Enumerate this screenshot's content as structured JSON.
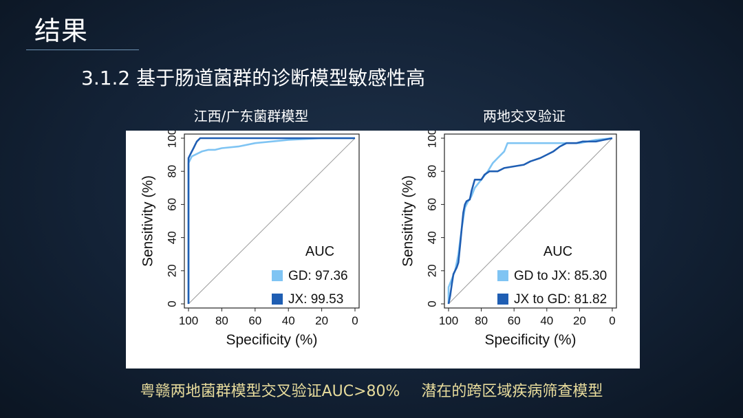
{
  "slide": {
    "title": "结果",
    "heading": "3.1.2 基于肠道菌群的诊断模型敏感性高",
    "footer_left": "粤赣两地菌群模型交叉验证AUC>80%",
    "footer_right": "潜在的跨区域疾病筛查模型"
  },
  "colors": {
    "light_series": "#7fc4f3",
    "dark_series": "#1f5eb3",
    "diagonal": "#9a9a9a",
    "footer_text": "#e8dc9c"
  },
  "chart_data": [
    {
      "type": "line",
      "panel_title": "江西/广东菌群模型",
      "xlabel": "Specificity (%)",
      "ylabel": "Sensitivity (%)",
      "xlim": [
        100,
        0
      ],
      "ylim": [
        0,
        100
      ],
      "x_ticks": [
        "100",
        "80",
        "60",
        "40",
        "20",
        "0"
      ],
      "y_ticks": [
        "0",
        "20",
        "40",
        "60",
        "80",
        "100"
      ],
      "legend_title": "AUC",
      "legend_position": "bottom-right",
      "reference_line": true,
      "series": [
        {
          "name": "GD: 97.36",
          "color": "light",
          "points": [
            [
              100,
              0
            ],
            [
              100,
              85
            ],
            [
              99,
              87
            ],
            [
              98,
              89
            ],
            [
              96,
              90
            ],
            [
              92,
              92
            ],
            [
              88,
              93
            ],
            [
              84,
              93
            ],
            [
              80,
              94
            ],
            [
              70,
              95
            ],
            [
              60,
              97
            ],
            [
              50,
              98
            ],
            [
              40,
              99
            ],
            [
              20,
              100
            ],
            [
              0,
              100
            ]
          ]
        },
        {
          "name": "JX: 99.53",
          "color": "dark",
          "points": [
            [
              100,
              0
            ],
            [
              100,
              88
            ],
            [
              99,
              90
            ],
            [
              98,
              92
            ],
            [
              97,
              94
            ],
            [
              96,
              96
            ],
            [
              95,
              98
            ],
            [
              94,
              99
            ],
            [
              93,
              100
            ],
            [
              60,
              100
            ],
            [
              0,
              100
            ]
          ]
        }
      ]
    },
    {
      "type": "line",
      "panel_title": "两地交叉验证",
      "xlabel": "Specificity (%)",
      "ylabel": "Sensitivity (%)",
      "xlim": [
        100,
        0
      ],
      "ylim": [
        0,
        100
      ],
      "x_ticks": [
        "100",
        "80",
        "60",
        "40",
        "20",
        "0"
      ],
      "y_ticks": [
        "0",
        "20",
        "40",
        "60",
        "80",
        "100"
      ],
      "legend_title": "AUC",
      "legend_position": "bottom-right",
      "reference_line": true,
      "series": [
        {
          "name": "GD to JX: 85.30",
          "color": "light",
          "points": [
            [
              100,
              0
            ],
            [
              100,
              10
            ],
            [
              98,
              15
            ],
            [
              96,
              20
            ],
            [
              94,
              30
            ],
            [
              92,
              45
            ],
            [
              90,
              58
            ],
            [
              88,
              62
            ],
            [
              86,
              65
            ],
            [
              84,
              70
            ],
            [
              80,
              75
            ],
            [
              76,
              80
            ],
            [
              73,
              85
            ],
            [
              70,
              88
            ],
            [
              66,
              92
            ],
            [
              64,
              97
            ],
            [
              50,
              97
            ],
            [
              20,
              97
            ],
            [
              15,
              98
            ],
            [
              10,
              99
            ],
            [
              0,
              100
            ]
          ]
        },
        {
          "name": "JX to GD: 81.82",
          "color": "dark",
          "points": [
            [
              100,
              0
            ],
            [
              99,
              5
            ],
            [
              98,
              12
            ],
            [
              97,
              18
            ],
            [
              95,
              22
            ],
            [
              94,
              25
            ],
            [
              93,
              35
            ],
            [
              92,
              45
            ],
            [
              91,
              55
            ],
            [
              90,
              60
            ],
            [
              89,
              62
            ],
            [
              87,
              63
            ],
            [
              86,
              68
            ],
            [
              84,
              75
            ],
            [
              80,
              75
            ],
            [
              78,
              78
            ],
            [
              75,
              80
            ],
            [
              70,
              80
            ],
            [
              66,
              82
            ],
            [
              60,
              83
            ],
            [
              54,
              84
            ],
            [
              50,
              86
            ],
            [
              44,
              88
            ],
            [
              40,
              90
            ],
            [
              36,
              92
            ],
            [
              32,
              95
            ],
            [
              28,
              97
            ],
            [
              22,
              97
            ],
            [
              18,
              98
            ],
            [
              10,
              98
            ],
            [
              5,
              99
            ],
            [
              0,
              100
            ]
          ]
        }
      ]
    }
  ]
}
